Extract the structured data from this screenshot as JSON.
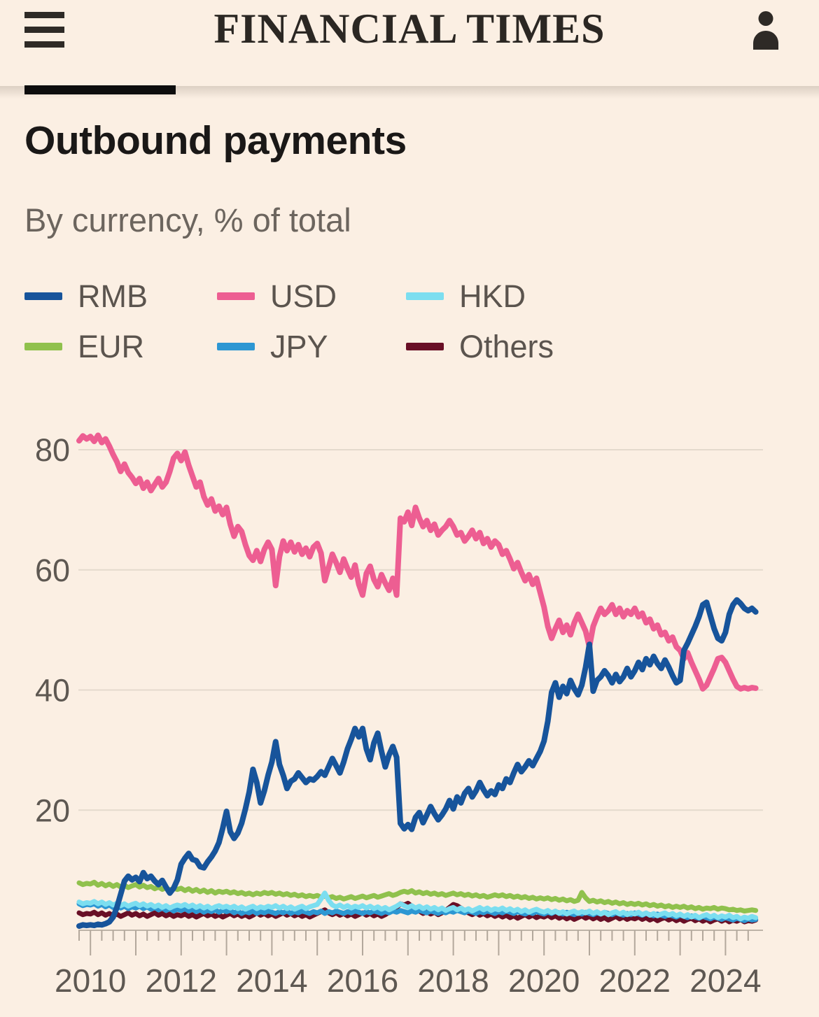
{
  "colors": {
    "bg": "#FBEFE3",
    "ink": "#2E2A26",
    "masthead": "#2B2723",
    "title": "#1A1817",
    "subtitle": "#6C655E",
    "legend_label": "#5B544E",
    "axis_label": "#5E5852",
    "gridline": "#E4DACD",
    "axis_line": "#BDB3A7",
    "tick": "#B3A89C",
    "section_bar": "#0D0D0D"
  },
  "header": {
    "brand": "FINANCIAL TIMES"
  },
  "article": {
    "title": "Outbound payments",
    "subtitle": "By currency, % of total"
  },
  "chart_data": {
    "type": "line",
    "title": "Outbound payments",
    "subtitle": "By currency, % of total",
    "x_range": [
      2009.75,
      2024.75
    ],
    "interval_years": 0.0833,
    "x_axis_ticks": [
      2010,
      2012,
      2014,
      2016,
      2018,
      2020,
      2022,
      2024
    ],
    "minor_tick_interval": 0.25,
    "ylim": [
      0,
      86
    ],
    "y_gridlines": [
      20,
      40,
      60,
      80
    ],
    "grid": true,
    "legend_position": "top",
    "series": [
      {
        "name": "RMB",
        "color": "#17549B",
        "values": [
          0.7,
          0.9,
          0.8,
          0.9,
          0.8,
          1.0,
          0.9,
          1.1,
          1.4,
          2.2,
          3.8,
          6.0,
          8.2,
          9.0,
          8.4,
          8.8,
          8.1,
          9.6,
          8.6,
          9.0,
          8.2,
          7.6,
          8.3,
          7.2,
          6.2,
          7.0,
          8.4,
          11.0,
          12.0,
          12.8,
          11.8,
          11.6,
          10.6,
          10.4,
          11.4,
          12.2,
          13.2,
          14.6,
          17.0,
          19.8,
          16.4,
          15.3,
          16.2,
          17.8,
          20.2,
          23.0,
          26.8,
          24.6,
          21.2,
          23.2,
          25.8,
          28.0,
          31.4,
          27.6,
          25.8,
          23.6,
          24.8,
          25.2,
          26.2,
          25.4,
          24.6,
          25.2,
          25.0,
          25.6,
          26.4,
          25.8,
          27.2,
          28.6,
          27.4,
          26.2,
          28.0,
          30.2,
          31.8,
          33.6,
          32.2,
          33.6,
          30.2,
          28.4,
          31.2,
          32.8,
          29.8,
          27.2,
          29.2,
          30.6,
          28.8,
          17.8,
          16.9,
          17.6,
          16.8,
          18.8,
          19.6,
          17.9,
          19.2,
          20.6,
          19.4,
          18.4,
          19.2,
          20.2,
          21.6,
          20.2,
          22.2,
          21.2,
          22.8,
          23.6,
          22.2,
          23.2,
          24.6,
          23.4,
          22.4,
          23.2,
          22.6,
          24.2,
          23.6,
          25.2,
          24.6,
          26.2,
          27.6,
          26.4,
          27.2,
          28.2,
          27.4,
          28.6,
          29.8,
          31.5,
          34.8,
          39.6,
          41.2,
          38.8,
          40.6,
          39.4,
          41.6,
          40.2,
          39.2,
          40.8,
          43.8,
          47.6,
          39.8,
          41.6,
          42.2,
          43.2,
          42.4,
          41.2,
          42.6,
          41.4,
          42.2,
          43.6,
          42.2,
          43.2,
          44.6,
          43.4,
          45.2,
          44.2,
          45.6,
          44.4,
          43.6,
          45.0,
          43.8,
          42.4,
          41.2,
          41.6,
          46.6,
          47.8,
          49.2,
          50.6,
          52.2,
          54.2,
          54.6,
          52.4,
          50.2,
          48.6,
          48.2,
          49.6,
          52.6,
          54.2,
          55.0,
          54.4,
          53.6,
          53.2,
          53.6,
          53.0
        ]
      },
      {
        "name": "USD",
        "color": "#ED5E92",
        "values": [
          81.5,
          82.3,
          81.8,
          82.2,
          81.4,
          82.4,
          81.2,
          81.8,
          80.6,
          79.2,
          78.0,
          76.4,
          77.6,
          76.2,
          75.4,
          74.4,
          75.2,
          73.6,
          74.6,
          73.2,
          74.2,
          75.2,
          73.8,
          74.6,
          76.4,
          78.6,
          79.4,
          78.2,
          79.6,
          77.4,
          75.6,
          73.8,
          74.6,
          72.2,
          70.8,
          71.8,
          69.8,
          70.6,
          69.2,
          70.4,
          67.6,
          65.6,
          67.2,
          66.4,
          64.2,
          62.4,
          61.6,
          63.2,
          61.4,
          63.4,
          64.6,
          63.4,
          57.4,
          62.2,
          64.8,
          63.2,
          64.6,
          63.0,
          64.2,
          62.6,
          63.6,
          62.2,
          63.8,
          64.4,
          62.8,
          58.2,
          60.4,
          62.6,
          61.2,
          59.6,
          61.8,
          60.2,
          58.8,
          60.8,
          57.6,
          55.8,
          59.4,
          60.6,
          58.4,
          57.2,
          59.2,
          57.8,
          56.6,
          58.6,
          55.8,
          68.6,
          68.0,
          69.6,
          67.4,
          70.4,
          68.6,
          67.2,
          68.2,
          66.6,
          67.6,
          65.8,
          66.6,
          67.2,
          68.2,
          67.2,
          65.8,
          66.2,
          64.8,
          65.6,
          66.6,
          65.2,
          66.2,
          64.4,
          65.2,
          63.8,
          64.8,
          64.2,
          62.6,
          63.2,
          61.8,
          60.2,
          61.2,
          59.6,
          58.2,
          59.2,
          57.6,
          58.6,
          56.2,
          53.8,
          50.6,
          48.6,
          50.2,
          51.6,
          49.6,
          50.8,
          49.2,
          51.2,
          52.6,
          51.2,
          49.8,
          47.2,
          50.6,
          52.2,
          53.6,
          52.6,
          53.2,
          54.2,
          52.6,
          53.6,
          52.2,
          53.2,
          52.6,
          53.6,
          52.2,
          52.8,
          51.2,
          51.8,
          50.2,
          50.8,
          49.2,
          49.6,
          48.2,
          48.8,
          47.2,
          46.6,
          45.2,
          46.2,
          44.6,
          43.2,
          41.8,
          40.2,
          40.8,
          42.2,
          43.6,
          45.2,
          45.4,
          44.6,
          43.2,
          41.8,
          40.6,
          40.2,
          40.4,
          40.2,
          40.4,
          40.3
        ]
      },
      {
        "name": "HKD",
        "color": "#7CDEF0",
        "values": [
          4.7,
          4.4,
          4.6,
          4.5,
          4.8,
          4.4,
          4.7,
          4.3,
          4.6,
          4.2,
          4.5,
          4.1,
          4.4,
          4.0,
          4.3,
          4.5,
          4.1,
          4.4,
          4.0,
          4.3,
          3.9,
          4.2,
          3.8,
          4.1,
          3.7,
          4.0,
          4.2,
          4.0,
          4.3,
          3.9,
          4.2,
          3.8,
          4.1,
          3.7,
          4.0,
          3.6,
          3.9,
          4.1,
          3.8,
          4.0,
          3.7,
          4.0,
          3.6,
          3.9,
          3.5,
          3.8,
          4.0,
          3.6,
          3.9,
          3.7,
          4.0,
          3.8,
          4.1,
          3.7,
          4.0,
          3.6,
          3.9,
          3.5,
          3.8,
          4.0,
          3.6,
          3.9,
          4.1,
          4.3,
          5.2,
          6.2,
          5.0,
          4.2,
          3.9,
          4.2,
          3.8,
          4.1,
          3.7,
          4.0,
          3.8,
          4.1,
          3.7,
          4.0,
          3.6,
          3.9,
          3.5,
          3.8,
          3.4,
          3.7,
          4.0,
          4.4,
          4.1,
          3.8,
          4.1,
          3.7,
          4.0,
          3.6,
          3.9,
          3.5,
          3.8,
          3.4,
          3.7,
          3.3,
          3.6,
          3.8,
          3.4,
          3.7,
          3.3,
          3.6,
          3.2,
          3.5,
          3.8,
          3.4,
          3.7,
          3.3,
          3.6,
          3.4,
          3.7,
          3.3,
          3.6,
          3.2,
          3.5,
          3.1,
          3.4,
          3.0,
          3.3,
          3.5,
          3.2,
          3.0,
          3.3,
          2.9,
          3.2,
          2.8,
          3.1,
          2.7,
          3.0,
          3.2,
          2.8,
          3.1,
          2.9,
          3.2,
          2.8,
          3.1,
          2.7,
          3.0,
          2.6,
          2.9,
          3.1,
          2.7,
          3.0,
          2.6,
          2.9,
          2.7,
          3.0,
          2.6,
          2.9,
          2.5,
          2.8,
          2.4,
          2.7,
          2.9,
          2.5,
          2.8,
          2.4,
          2.7,
          2.3,
          2.6,
          2.2,
          2.5,
          2.1,
          2.4,
          2.6,
          2.2,
          2.5,
          2.1,
          2.4,
          2.2,
          2.5,
          2.1,
          2.3,
          1.9,
          2.2,
          2.0,
          2.3,
          2.1
        ]
      },
      {
        "name": "EUR",
        "color": "#90C14D",
        "values": [
          7.9,
          7.6,
          7.8,
          7.7,
          8.0,
          7.5,
          7.8,
          7.4,
          7.7,
          7.3,
          7.6,
          7.2,
          7.5,
          7.1,
          7.4,
          7.6,
          7.2,
          7.5,
          7.1,
          7.3,
          6.9,
          7.2,
          6.8,
          7.1,
          6.7,
          7.0,
          6.8,
          7.0,
          6.6,
          6.9,
          6.5,
          6.8,
          6.4,
          6.7,
          6.3,
          6.6,
          6.2,
          6.5,
          6.3,
          6.5,
          6.2,
          6.4,
          6.1,
          6.3,
          6.0,
          6.2,
          5.9,
          6.2,
          6.0,
          6.3,
          6.1,
          6.3,
          6.0,
          6.2,
          5.9,
          6.1,
          5.8,
          6.0,
          5.7,
          5.9,
          5.6,
          5.8,
          5.6,
          5.8,
          5.5,
          5.7,
          5.4,
          5.6,
          5.3,
          5.5,
          5.2,
          5.4,
          5.6,
          5.3,
          5.5,
          5.7,
          5.4,
          5.6,
          5.8,
          5.5,
          5.7,
          5.9,
          6.1,
          5.8,
          6.0,
          6.3,
          6.5,
          6.3,
          6.6,
          6.2,
          6.4,
          6.1,
          6.3,
          6.0,
          6.2,
          5.9,
          6.1,
          5.8,
          6.0,
          6.2,
          5.9,
          6.1,
          5.8,
          6.0,
          5.7,
          5.9,
          5.6,
          5.8,
          5.5,
          5.7,
          5.9,
          5.7,
          5.9,
          5.6,
          5.8,
          5.5,
          5.7,
          5.4,
          5.6,
          5.3,
          5.5,
          5.2,
          5.4,
          5.2,
          5.4,
          5.1,
          5.3,
          5.0,
          5.2,
          4.9,
          5.1,
          4.8,
          5.0,
          6.3,
          5.4,
          4.8,
          5.0,
          4.7,
          4.9,
          4.6,
          4.8,
          4.5,
          4.7,
          4.4,
          4.6,
          4.3,
          4.5,
          4.3,
          4.5,
          4.2,
          4.4,
          4.1,
          4.3,
          4.0,
          4.2,
          3.9,
          4.1,
          3.8,
          4.0,
          3.8,
          4.0,
          3.7,
          3.9,
          3.6,
          3.8,
          3.5,
          3.7,
          3.6,
          3.8,
          3.5,
          3.7,
          3.6,
          3.4,
          3.5,
          3.3,
          3.4,
          3.2,
          3.3,
          3.4,
          3.3
        ]
      },
      {
        "name": "JPY",
        "color": "#2D97D3",
        "values": [
          4.4,
          4.1,
          4.3,
          4.2,
          4.4,
          4.0,
          4.3,
          3.9,
          4.2,
          3.8,
          4.1,
          3.7,
          4.0,
          3.6,
          3.9,
          3.7,
          4.0,
          3.6,
          3.9,
          3.5,
          3.8,
          3.4,
          3.7,
          3.3,
          3.6,
          3.2,
          3.5,
          3.3,
          3.6,
          3.2,
          3.5,
          3.1,
          3.4,
          3.0,
          3.3,
          3.1,
          3.4,
          3.0,
          3.3,
          3.1,
          3.3,
          2.9,
          3.2,
          2.8,
          3.1,
          2.9,
          3.2,
          2.8,
          3.1,
          2.9,
          3.2,
          3.0,
          2.8,
          3.1,
          2.9,
          3.2,
          2.8,
          3.1,
          2.9,
          3.2,
          3.0,
          2.8,
          3.1,
          2.9,
          3.2,
          2.8,
          3.1,
          2.9,
          3.2,
          3.0,
          2.8,
          3.1,
          2.9,
          3.2,
          3.0,
          2.8,
          3.1,
          2.9,
          3.2,
          3.0,
          2.8,
          3.1,
          2.9,
          3.2,
          3.0,
          3.3,
          3.1,
          2.9,
          3.2,
          3.0,
          3.3,
          3.1,
          2.9,
          3.2,
          3.0,
          2.8,
          3.1,
          2.9,
          3.2,
          3.0,
          3.3,
          3.1,
          2.9,
          3.2,
          3.0,
          2.8,
          3.1,
          2.9,
          3.2,
          3.0,
          2.8,
          3.1,
          2.9,
          3.2,
          3.0,
          2.8,
          3.1,
          2.9,
          2.7,
          3.0,
          2.8,
          3.1,
          2.9,
          2.7,
          3.0,
          2.8,
          3.1,
          2.9,
          2.7,
          3.0,
          2.8,
          2.6,
          2.9,
          2.7,
          3.0,
          2.8,
          2.6,
          2.9,
          2.7,
          3.0,
          2.8,
          2.6,
          2.9,
          2.7,
          2.5,
          2.8,
          2.6,
          2.9,
          2.7,
          2.5,
          2.8,
          2.6,
          2.4,
          2.7,
          2.5,
          2.3,
          2.6,
          2.4,
          2.2,
          2.5,
          2.3,
          2.1,
          2.4,
          2.2,
          2.0,
          2.3,
          2.1,
          1.9,
          2.2,
          2.0,
          1.8,
          2.1,
          1.9,
          1.7,
          2.0,
          1.8,
          1.6,
          1.9,
          1.7,
          1.8
        ]
      },
      {
        "name": "Others",
        "color": "#690F26",
        "values": [
          2.9,
          2.6,
          2.8,
          2.7,
          3.0,
          2.6,
          2.9,
          2.5,
          2.8,
          2.4,
          2.7,
          2.3,
          2.6,
          2.9,
          2.5,
          2.8,
          2.4,
          2.7,
          2.3,
          2.6,
          2.9,
          2.5,
          2.8,
          2.4,
          2.7,
          2.3,
          2.6,
          2.4,
          2.7,
          2.3,
          2.6,
          2.2,
          2.5,
          2.8,
          2.4,
          2.7,
          2.3,
          2.6,
          2.2,
          2.5,
          2.8,
          2.4,
          2.7,
          2.3,
          2.6,
          2.2,
          2.5,
          2.9,
          2.5,
          2.8,
          2.4,
          2.7,
          2.3,
          2.6,
          2.9,
          2.5,
          2.8,
          2.4,
          2.7,
          2.3,
          2.6,
          2.2,
          2.5,
          2.8,
          3.1,
          3.4,
          2.9,
          2.6,
          2.9,
          2.5,
          2.8,
          2.4,
          2.7,
          2.3,
          2.6,
          2.9,
          2.5,
          2.8,
          2.4,
          2.7,
          2.3,
          2.6,
          3.0,
          3.4,
          3.8,
          4.4,
          4.2,
          4.5,
          4.0,
          3.6,
          3.2,
          2.8,
          3.1,
          2.7,
          3.0,
          2.6,
          2.9,
          3.3,
          3.8,
          4.3,
          4.1,
          3.7,
          3.3,
          2.9,
          2.6,
          2.9,
          2.5,
          2.8,
          2.4,
          2.7,
          2.3,
          2.6,
          2.2,
          2.5,
          2.1,
          2.4,
          2.0,
          2.3,
          2.6,
          2.2,
          2.5,
          2.1,
          2.4,
          2.2,
          2.5,
          2.1,
          2.4,
          2.0,
          2.3,
          1.9,
          2.2,
          1.8,
          2.1,
          2.4,
          2.0,
          2.3,
          1.9,
          2.2,
          1.8,
          2.1,
          1.7,
          2.0,
          2.3,
          1.9,
          2.2,
          1.8,
          2.1,
          1.9,
          2.2,
          1.8,
          2.1,
          1.7,
          2.0,
          1.6,
          1.9,
          2.1,
          1.7,
          2.0,
          1.6,
          1.9,
          1.5,
          1.8,
          2.0,
          1.6,
          1.9,
          1.5,
          1.8,
          1.4,
          1.7,
          1.9,
          1.5,
          1.8,
          1.4,
          1.7,
          1.5,
          1.8,
          1.4,
          1.6,
          1.5,
          1.7
        ]
      }
    ],
    "draw_order": [
      "Others",
      "JPY",
      "EUR",
      "HKD",
      "USD",
      "RMB"
    ]
  }
}
